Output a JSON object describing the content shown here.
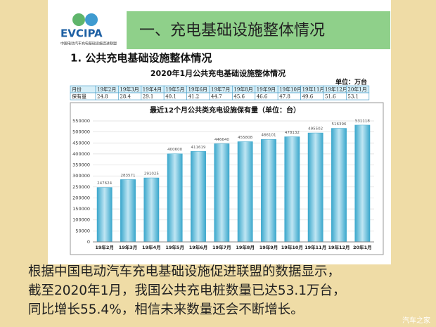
{
  "logo": {
    "name": "EVCIPA",
    "subtitle": "中国电动汽车充电基础设施促进联盟"
  },
  "banner": "一、充电基础设施整体情况",
  "heading": "1. 公共充电基础设施整体情况",
  "table": {
    "title": "2020年1月公共充电基础设施整体情况",
    "unit": "单位：万台",
    "rows": [
      [
        "月份",
        "19年2月",
        "19年3月",
        "19年4月",
        "19年5月",
        "19年6月",
        "19年7月",
        "19年8月",
        "19年9月",
        "19年10月",
        "19年11月",
        "19年12月",
        "20年1月"
      ],
      [
        "保有量",
        "24.8",
        "28.4",
        "29.1",
        "40.1",
        "41.2",
        "44.7",
        "45.6",
        "46.6",
        "47.8",
        "49.6",
        "51.6",
        "53.1"
      ]
    ]
  },
  "chart_data": {
    "type": "bar",
    "title": "最近12个月公共类充电设施保有量（单位：台）",
    "categories": [
      "19年2月",
      "19年3月",
      "19年4月",
      "19年5月",
      "19年6月",
      "19年7月",
      "19年8月",
      "19年9月",
      "19年10月",
      "19年11月",
      "19年12月",
      "20年1月"
    ],
    "values": [
      247624,
      283571,
      291025,
      400600,
      411619,
      446640,
      455808,
      466101,
      478132,
      495502,
      516396,
      531118
    ],
    "color": "#3ba7cc",
    "ylim": [
      0,
      550000
    ],
    "yticks": [
      0,
      50000,
      100000,
      150000,
      200000,
      250000,
      300000,
      350000,
      400000,
      450000,
      500000,
      550000
    ],
    "grid": true
  },
  "caption": [
    "根据中国电动汽车充电基础设施促进联盟的数据显示，",
    "截至2020年1月，我国公共充电桩数量已达53.1万台，",
    "同比增长55.4%，相信未来数量还会不断增长。"
  ],
  "watermark": "汽车之家"
}
